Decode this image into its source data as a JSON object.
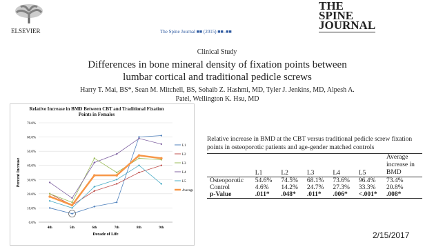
{
  "header": {
    "publisher": "ELSEVIER",
    "journal_line": "The Spine Journal ■■ (2015) ■■–■■",
    "logo": [
      "THE",
      "SPINE",
      "JOURNAL"
    ],
    "section": "Clinical Study",
    "title": "Differences in bone mineral density of fixation points between lumbar cortical and traditional pedicle screws",
    "authors": "Harry T. Mai, BS*, Sean M. Mitchell, BS, Sohaib Z. Hashmi, MD, Tyler J. Jenkins, MD, Alpesh A. Patel, Wellington K. Hsu, MD"
  },
  "chart_data": {
    "type": "line",
    "title": "Relative Increase in BMD Between CBT and Traditional Fixation Points in Females",
    "y_label": "Percent Increase",
    "x_label": "Decade of Life",
    "categories": [
      "4th",
      "5th",
      "6th",
      "7th",
      "8th",
      "9th"
    ],
    "series": [
      {
        "name": "L1",
        "color": "#4f81bd",
        "values": [
          10,
          6,
          11,
          14,
          60,
          61
        ]
      },
      {
        "name": "L2",
        "color": "#c0504d",
        "values": [
          20,
          12,
          22,
          27,
          35,
          40
        ]
      },
      {
        "name": "L3",
        "color": "#9bbb59",
        "values": [
          20,
          14,
          45,
          35,
          45,
          44
        ]
      },
      {
        "name": "L4",
        "color": "#8064a2",
        "values": [
          28,
          17,
          42,
          48,
          59,
          55
        ]
      },
      {
        "name": "L5",
        "color": "#4bacc6",
        "values": [
          15,
          10,
          25,
          30,
          40,
          27
        ]
      },
      {
        "name": "Average",
        "color": "#f79646",
        "values": [
          18,
          12,
          33,
          33,
          47,
          45
        ]
      }
    ],
    "ylim": [
      0,
      70
    ],
    "yticks": [
      {
        "value": 0,
        "label": "0.0%"
      },
      {
        "value": 10,
        "label": "10.0%"
      },
      {
        "value": 20,
        "label": "20.0%"
      },
      {
        "value": 30,
        "label": "30.0%"
      },
      {
        "value": 40,
        "label": "40.0%"
      },
      {
        "value": 50,
        "label": "50.0%"
      },
      {
        "value": 60,
        "label": "60.0%"
      },
      {
        "value": 70,
        "label": "70.0%"
      }
    ],
    "grid": true,
    "legend": "right"
  },
  "table": {
    "caption": "Relative increase in BMD at the CBT versus traditional pedicle screw fixation points in osteoporotic patients and age-gender matched controls",
    "header": [
      "L1",
      "L2",
      "L3",
      "L4",
      "L5",
      "Average increase in BMD"
    ],
    "rows": [
      [
        "Osteoporotic",
        "54.6%",
        "74.5%",
        "68.1%",
        "73.6%",
        "96.4%",
        "73.4%"
      ],
      [
        "Control",
        "4.6%",
        "14.2%",
        "24.7%",
        "27.3%",
        "33.3%",
        "20.8%"
      ],
      [
        "p-Value",
        ".011*",
        ".048*",
        ".011*",
        ".006*",
        "<.001*",
        ".008*"
      ]
    ]
  },
  "footer": {
    "date": "2/15/2017"
  }
}
